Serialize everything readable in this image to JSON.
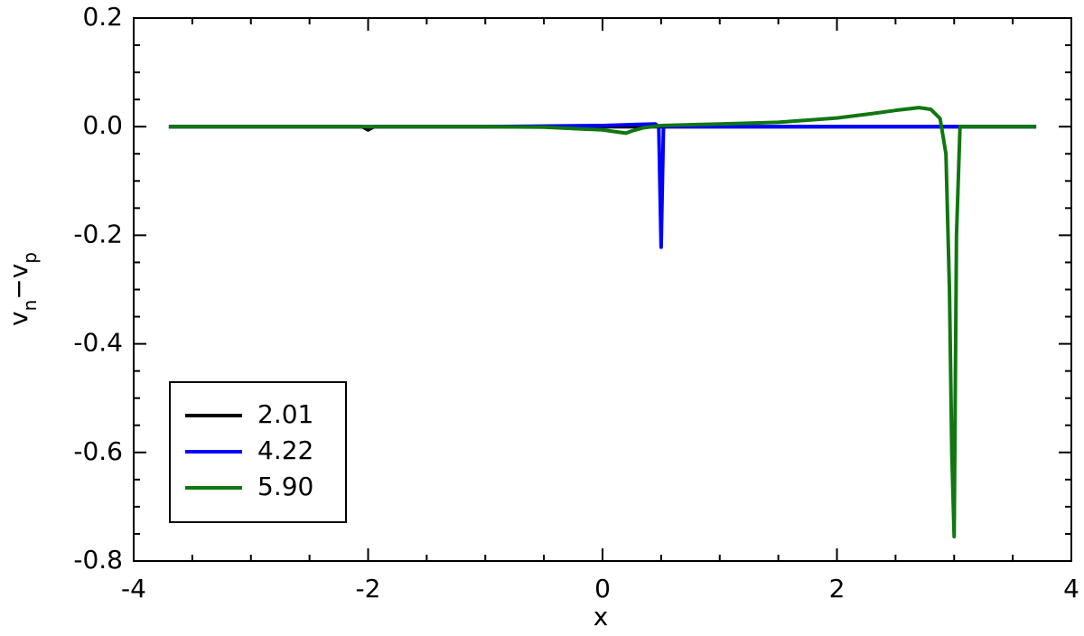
{
  "chart_data": {
    "type": "line",
    "xlabel": "x",
    "ylabel": [
      {
        "text": "v"
      },
      {
        "text": "n",
        "sub": true
      },
      {
        "text": "−v"
      },
      {
        "text": "p",
        "sub": true
      }
    ],
    "xlim": [
      -4,
      4
    ],
    "xticks": [
      -4,
      -2,
      0,
      2,
      4
    ],
    "ylim": [
      -0.8,
      0.2
    ],
    "yticks": [
      -0.8,
      -0.6,
      -0.4,
      -0.2,
      {
        "value": 0,
        "label": "0.0"
      },
      0.2
    ],
    "minor_ticks": true,
    "mirror_ticks": true,
    "grid": false,
    "legend": "lower left",
    "series": [
      {
        "name": "2.01",
        "color": "#000000",
        "x": [
          -3.7,
          -2.05,
          -2.0,
          -1.95,
          3.7
        ],
        "values": [
          0,
          0,
          -0.006,
          0,
          0
        ]
      },
      {
        "name": "4.22",
        "color": "#0000ff",
        "x": [
          -3.7,
          -1,
          0,
          0.3,
          0.45,
          0.48,
          0.5,
          0.52,
          0.55,
          3.7
        ],
        "values": [
          0,
          0,
          0.002,
          0.004,
          0.005,
          0,
          -0.222,
          0,
          0,
          0
        ]
      },
      {
        "name": "5.90",
        "color": "#117711",
        "x": [
          -3.7,
          -1,
          -0.5,
          0,
          0.1,
          0.2,
          0.25,
          0.35,
          0.5,
          1,
          1.5,
          2,
          2.3,
          2.5,
          2.7,
          2.8,
          2.88,
          2.93,
          2.96,
          2.98,
          3.0,
          3.02,
          3.05,
          3.7
        ],
        "values": [
          0,
          0,
          -0.001,
          -0.006,
          -0.009,
          -0.012,
          -0.008,
          -0.002,
          0.002,
          0.005,
          0.008,
          0.016,
          0.024,
          0.03,
          0.035,
          0.032,
          0.015,
          -0.05,
          -0.3,
          -0.6,
          -0.755,
          -0.2,
          0,
          0
        ]
      }
    ]
  }
}
